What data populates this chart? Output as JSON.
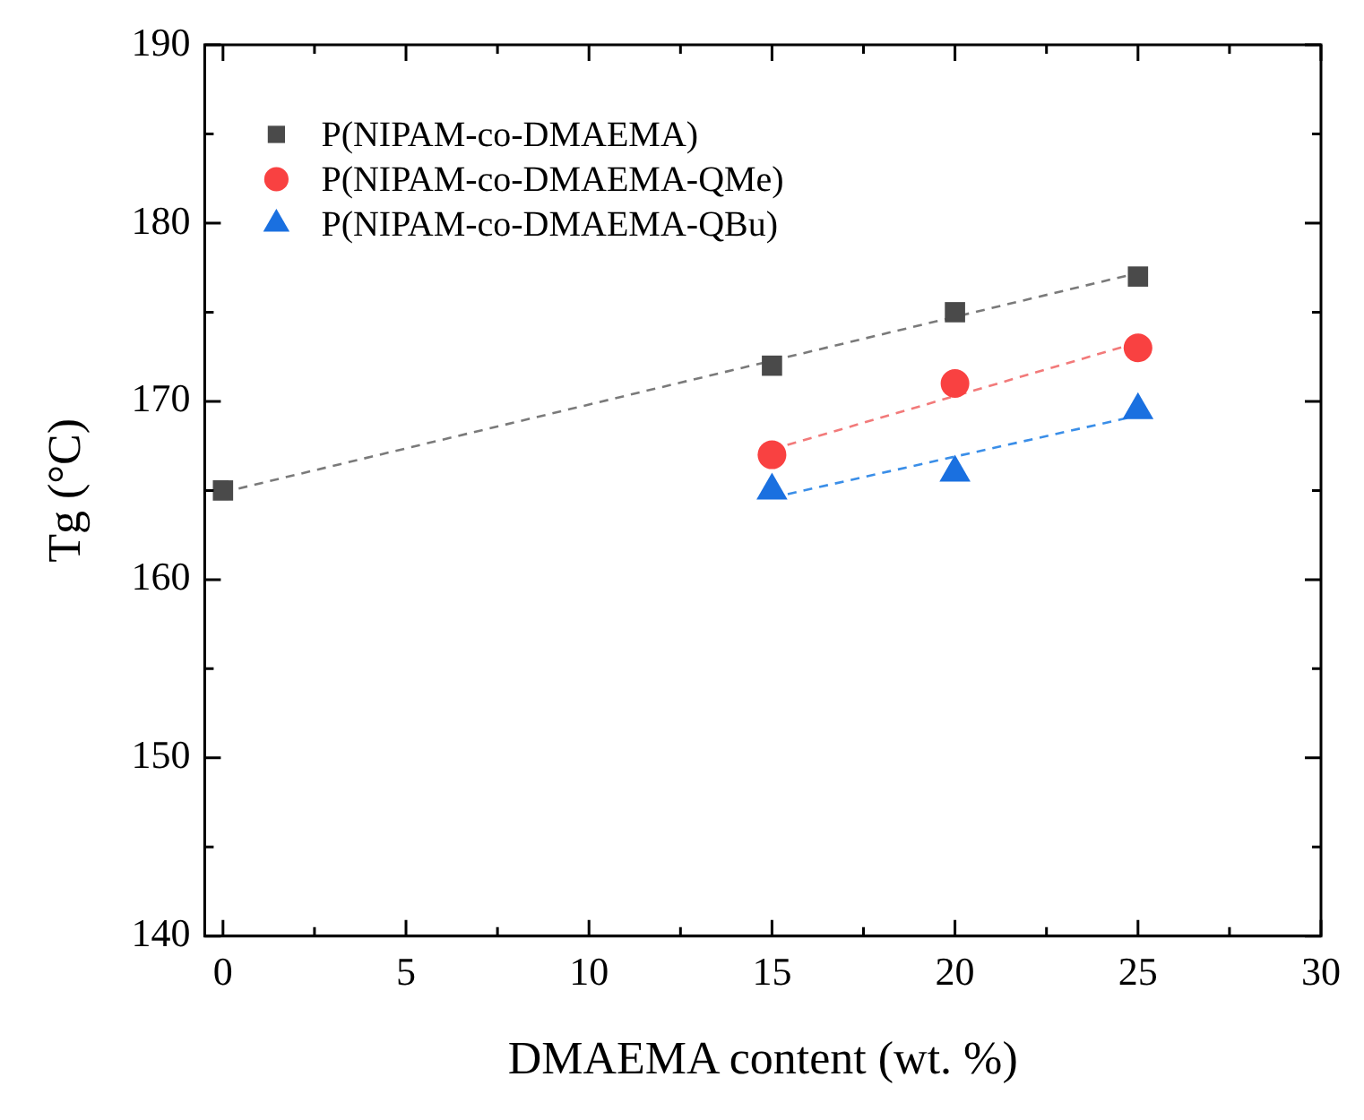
{
  "chart_data": {
    "type": "scatter",
    "xlabel": "DMAEMA content (wt. %)",
    "ylabel": "Tg (°C)",
    "series": [
      {
        "name": "P(NIPAM-co-DMAEMA)",
        "color": "#4a4a4a",
        "marker": "square",
        "x": [
          0,
          15,
          20,
          25
        ],
        "values": [
          165,
          172,
          175,
          177
        ]
      },
      {
        "name": "P(NIPAM-co-DMAEMA-QMe)",
        "color": "#f94141",
        "marker": "circle",
        "x": [
          15,
          20,
          25
        ],
        "values": [
          167,
          171,
          173
        ]
      },
      {
        "name": "P(NIPAM-co-DMAEMA-QBu)",
        "color": "#1a70e0",
        "marker": "triangle",
        "x": [
          15,
          20,
          25
        ],
        "values": [
          165,
          166,
          169.5
        ]
      },
      {
        "type": "line",
        "color": "#7a7a7a",
        "line_style": "dashed",
        "marker": "none",
        "x": [
          0,
          25
        ],
        "values": [
          164.9,
          177.2
        ]
      },
      {
        "type": "line",
        "color": "#f27a7a",
        "line_style": "dashed",
        "marker": "none",
        "x": [
          15,
          25
        ],
        "values": [
          167.3,
          173.3
        ]
      },
      {
        "type": "line",
        "color": "#3a8ee8",
        "line_style": "dashed",
        "marker": "none",
        "x": [
          15,
          25
        ],
        "values": [
          164.6,
          169.2
        ]
      }
    ],
    "xlim": [
      -0.5,
      30
    ],
    "ylim": [
      140,
      190
    ],
    "xticks": [
      0,
      {
        "value": 2.5,
        "label": null
      },
      5,
      {
        "value": 7.5,
        "label": null
      },
      10,
      {
        "value": 12.5,
        "label": null
      },
      15,
      {
        "value": 17.5,
        "label": null
      },
      20,
      {
        "value": 22.5,
        "label": null
      },
      25,
      {
        "value": 27.5,
        "label": null
      },
      30
    ],
    "yticks": [
      140,
      {
        "value": 145,
        "label": null
      },
      150,
      {
        "value": 155,
        "label": null
      },
      160,
      {
        "value": 165,
        "label": null
      },
      170,
      {
        "value": 175,
        "label": null
      },
      180,
      {
        "value": 185,
        "label": null
      },
      190
    ],
    "grid": false,
    "legend": "top left"
  }
}
